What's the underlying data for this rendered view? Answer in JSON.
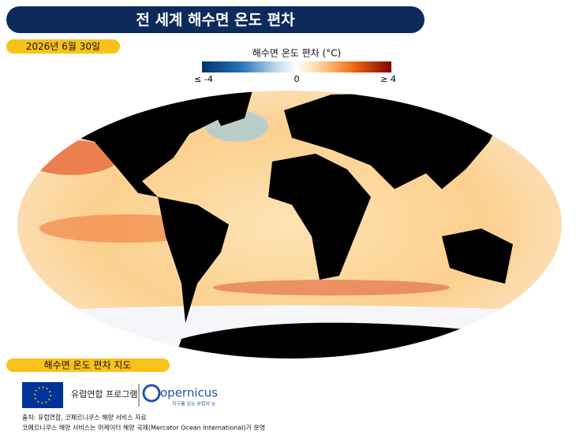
{
  "header": {
    "title": "전 세계 해수면 온도 편차",
    "date": "2026년 6월 30일"
  },
  "legend": {
    "title": "해수면 온도 편차 (°C)",
    "min_label": "≤ -4",
    "mid_label": "0",
    "max_label": "≥ 4"
  },
  "map": {
    "caption": "해수면 온도 편차 지도"
  },
  "footer": {
    "eu_label": "유럽연합 프로그램",
    "copernicus_name": "opernicus",
    "copernicus_tagline": "지구를 보는 유럽의 눈",
    "source_lines": [
      "출처: 유럽연합, 코페르니쿠스 해양 서비스 자료",
      "코페르니쿠스 해양 서비스는 머케이터 해양 국제(Mercator Ocean International)가 운영"
    ]
  }
}
